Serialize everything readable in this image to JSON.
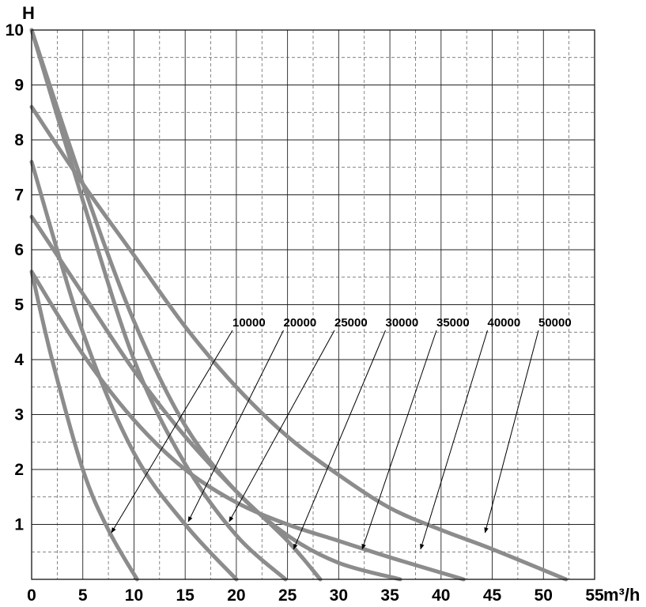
{
  "chart_data": {
    "type": "line",
    "title": "",
    "xlabel": "m³/h",
    "ylabel": "H",
    "xlim": [
      0,
      55
    ],
    "ylim": [
      0,
      10
    ],
    "x_ticks": [
      "0",
      "5",
      "10",
      "15",
      "20",
      "25",
      "30",
      "35",
      "40",
      "45",
      "50",
      "55"
    ],
    "y_ticks": [
      "1",
      "2",
      "3",
      "4",
      "5",
      "6",
      "7",
      "8",
      "9",
      "10"
    ],
    "grid": true,
    "line_color": "#8c8c8c",
    "series": [
      {
        "name": "10000",
        "points": [
          [
            0,
            5.6
          ],
          [
            2,
            4.0
          ],
          [
            5,
            2.0
          ],
          [
            7.5,
            0.9
          ],
          [
            10.3,
            0.0
          ]
        ],
        "label_arrow_to": [
          7.8,
          0.85
        ]
      },
      {
        "name": "20000",
        "points": [
          [
            0,
            7.6
          ],
          [
            5,
            4.5
          ],
          [
            10,
            2.3
          ],
          [
            15,
            1.0
          ],
          [
            20,
            0.0
          ]
        ],
        "label_arrow_to": [
          15.3,
          1.05
        ]
      },
      {
        "name": "25000",
        "points": [
          [
            0,
            10.0
          ],
          [
            5,
            6.9
          ],
          [
            10,
            4.0
          ],
          [
            15,
            2.1
          ],
          [
            20,
            0.8
          ],
          [
            24.8,
            0.0
          ]
        ],
        "label_arrow_to": [
          19.3,
          1.05
        ]
      },
      {
        "name": "30000",
        "points": [
          [
            0,
            6.6
          ],
          [
            5,
            5.2
          ],
          [
            10,
            3.8
          ],
          [
            15,
            2.6
          ],
          [
            20,
            1.6
          ],
          [
            25,
            0.7
          ],
          [
            28.2,
            0.0
          ]
        ],
        "label_arrow_to": [
          25.6,
          0.55
        ]
      },
      {
        "name": "35000",
        "points": [
          [
            0,
            10.0
          ],
          [
            5,
            7.2
          ],
          [
            10,
            4.7
          ],
          [
            15,
            2.8
          ],
          [
            20,
            1.6
          ],
          [
            25,
            0.8
          ],
          [
            30,
            0.3
          ],
          [
            36,
            0.0
          ]
        ],
        "label_arrow_to": [
          32.3,
          0.55
        ]
      },
      {
        "name": "40000",
        "points": [
          [
            0,
            5.6
          ],
          [
            5,
            4.1
          ],
          [
            10,
            2.9
          ],
          [
            15,
            2.0
          ],
          [
            20,
            1.4
          ],
          [
            25,
            1.0
          ],
          [
            30,
            0.7
          ],
          [
            35,
            0.4
          ],
          [
            42.2,
            0.0
          ]
        ],
        "label_arrow_to": [
          38.0,
          0.55
        ]
      },
      {
        "name": "50000",
        "points": [
          [
            0,
            8.6
          ],
          [
            5,
            7.2
          ],
          [
            10,
            5.9
          ],
          [
            15,
            4.6
          ],
          [
            20,
            3.5
          ],
          [
            25,
            2.6
          ],
          [
            30,
            1.9
          ],
          [
            35,
            1.3
          ],
          [
            40,
            0.9
          ],
          [
            45,
            0.55
          ],
          [
            52.2,
            0.0
          ]
        ],
        "label_arrow_to": [
          44.3,
          0.85
        ]
      }
    ]
  }
}
